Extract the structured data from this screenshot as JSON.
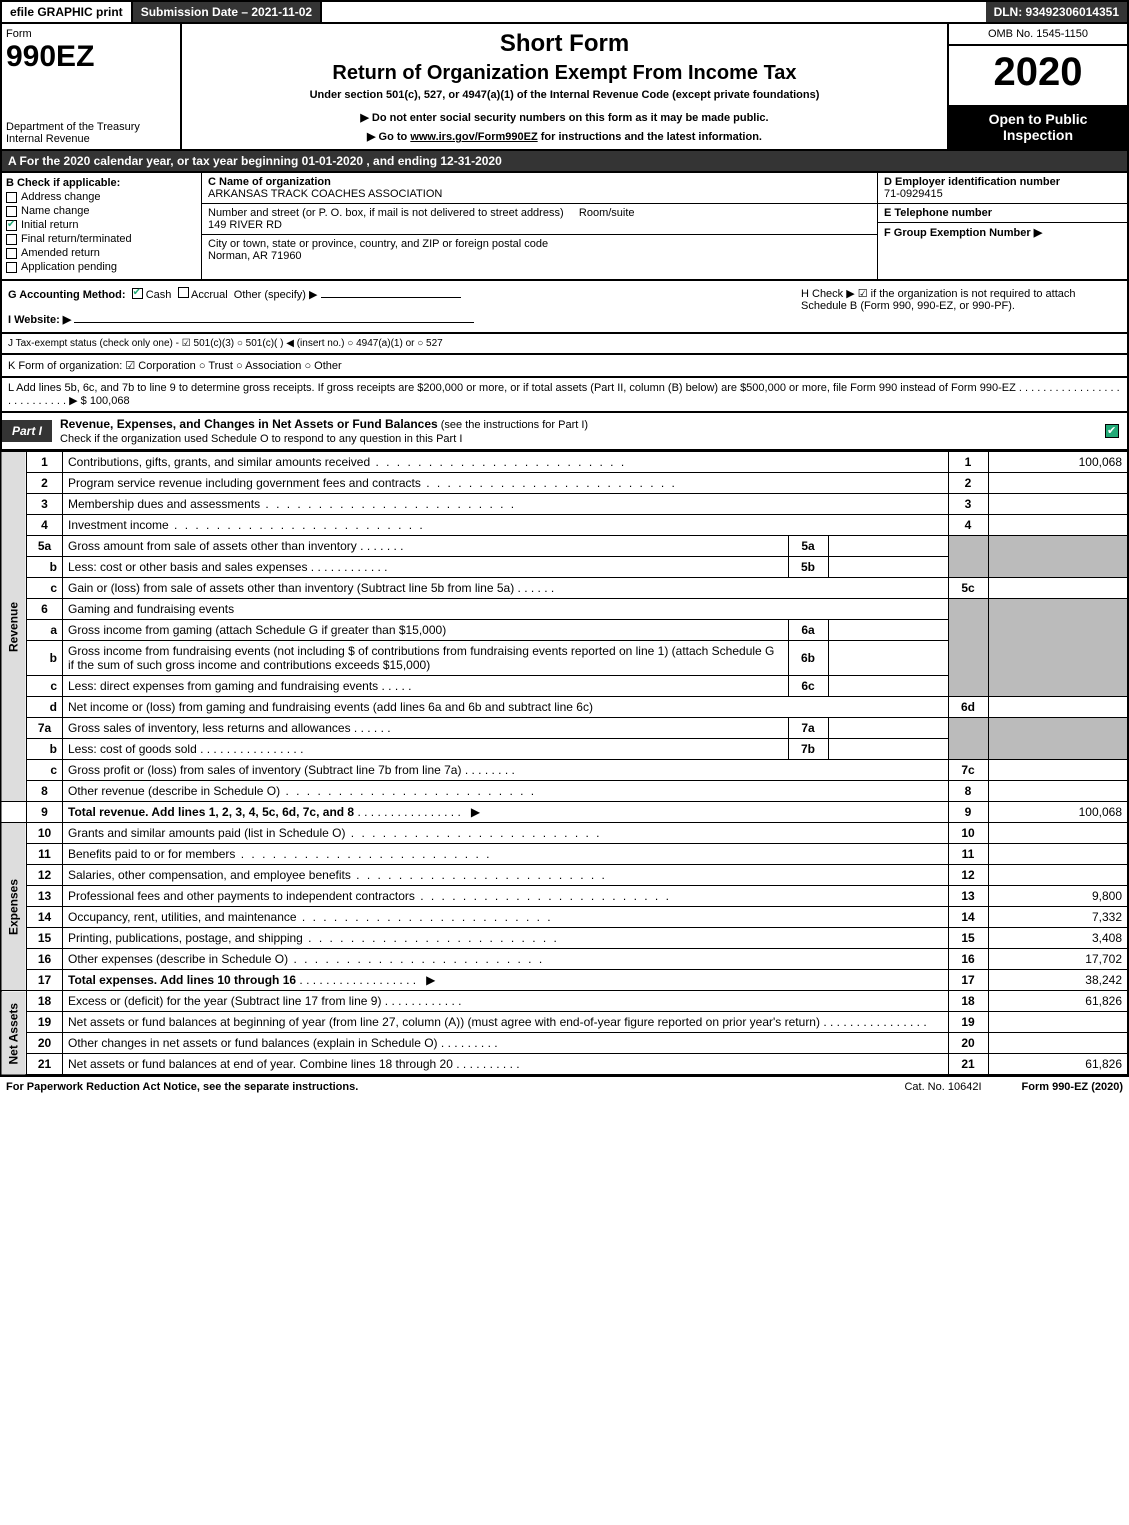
{
  "topbar": {
    "efile": "efile GRAPHIC print",
    "submission": "Submission Date – 2021-11-02",
    "dln": "DLN: 93492306014351"
  },
  "header": {
    "form_label": "Form",
    "form_number": "990EZ",
    "dept": "Department of the Treasury\nInternal Revenue",
    "short_form": "Short Form",
    "return_title": "Return of Organization Exempt From Income Tax",
    "under_section": "Under section 501(c), 527, or 4947(a)(1) of the Internal Revenue Code (except private foundations)",
    "do_not": "▶ Do not enter social security numbers on this form as it may be made public.",
    "goto_pre": "▶ Go to ",
    "goto_link": "www.irs.gov/Form990EZ",
    "goto_post": " for instructions and the latest information.",
    "omb": "OMB No. 1545-1150",
    "year": "2020",
    "open": "Open to Public Inspection"
  },
  "row_a": "A For the 2020 calendar year, or tax year beginning 01-01-2020 , and ending 12-31-2020",
  "col_b": {
    "hdr": "B Check if applicable:",
    "items": [
      {
        "label": "Address change",
        "checked": false
      },
      {
        "label": "Name change",
        "checked": false
      },
      {
        "label": "Initial return",
        "checked": true
      },
      {
        "label": "Final return/terminated",
        "checked": false
      },
      {
        "label": "Amended return",
        "checked": false
      },
      {
        "label": "Application pending",
        "checked": false
      }
    ]
  },
  "col_c": {
    "name_lbl": "C Name of organization",
    "name": "ARKANSAS TRACK COACHES ASSOCIATION",
    "addr_lbl": "Number and street (or P. O. box, if mail is not delivered to street address)",
    "room_lbl": "Room/suite",
    "addr": "149 RIVER RD",
    "city_lbl": "City or town, state or province, country, and ZIP or foreign postal code",
    "city": "Norman, AR  71960"
  },
  "col_d": {
    "ein_lbl": "D Employer identification number",
    "ein": "71-0929415",
    "tel_lbl": "E Telephone number",
    "tel": "",
    "grp_lbl": "F Group Exemption Number  ▶",
    "grp": ""
  },
  "row_g": {
    "g_lbl": "G Accounting Method:",
    "cash": "Cash",
    "accrual": "Accrual",
    "other": "Other (specify) ▶",
    "h_text": "H  Check ▶  ☑  if the organization is not required to attach Schedule B (Form 990, 990-EZ, or 990-PF)."
  },
  "row_i": "I Website: ▶",
  "row_j": "J Tax-exempt status (check only one) - ☑ 501(c)(3)  ○ 501(c)(  ) ◀ (insert no.)  ○ 4947(a)(1) or  ○ 527",
  "row_k": "K Form of organization:  ☑ Corporation  ○ Trust  ○ Association  ○ Other",
  "row_l": "L Add lines 5b, 6c, and 7b to line 9 to determine gross receipts. If gross receipts are $200,000 or more, or if total assets (Part II, column (B) below) are $500,000 or more, file Form 990 instead of Form 990-EZ  .  .  .  .  .  .  .  .  .  .  .  .  .  .  .  .  .  .  .  .  .  .  .  .  .  .  .  ▶ $ 100,068",
  "part1": {
    "tab": "Part I",
    "title": "Revenue, Expenses, and Changes in Net Assets or Fund Balances",
    "sub": " (see the instructions for Part I)",
    "check_line": "Check if the organization used Schedule O to respond to any question in this Part I"
  },
  "sections": {
    "revenue": "Revenue",
    "expenses": "Expenses",
    "netassets": "Net Assets"
  },
  "lines": {
    "l1": {
      "n": "1",
      "d": "Contributions, gifts, grants, and similar amounts received",
      "box": "1",
      "v": "100,068"
    },
    "l2": {
      "n": "2",
      "d": "Program service revenue including government fees and contracts",
      "box": "2",
      "v": ""
    },
    "l3": {
      "n": "3",
      "d": "Membership dues and assessments",
      "box": "3",
      "v": ""
    },
    "l4": {
      "n": "4",
      "d": "Investment income",
      "box": "4",
      "v": ""
    },
    "l5a": {
      "n": "5a",
      "d": "Gross amount from sale of assets other than inventory",
      "mini": "5a"
    },
    "l5b": {
      "n": "b",
      "d": "Less: cost or other basis and sales expenses",
      "mini": "5b"
    },
    "l5c": {
      "n": "c",
      "d": "Gain or (loss) from sale of assets other than inventory (Subtract line 5b from line 5a)",
      "box": "5c",
      "v": ""
    },
    "l6": {
      "n": "6",
      "d": "Gaming and fundraising events"
    },
    "l6a": {
      "n": "a",
      "d": "Gross income from gaming (attach Schedule G if greater than $15,000)",
      "mini": "6a"
    },
    "l6b": {
      "n": "b",
      "d": "Gross income from fundraising events (not including $                      of contributions from fundraising events reported on line 1) (attach Schedule G if the sum of such gross income and contributions exceeds $15,000)",
      "mini": "6b"
    },
    "l6c": {
      "n": "c",
      "d": "Less: direct expenses from gaming and fundraising events",
      "mini": "6c"
    },
    "l6d": {
      "n": "d",
      "d": "Net income or (loss) from gaming and fundraising events (add lines 6a and 6b and subtract line 6c)",
      "box": "6d",
      "v": ""
    },
    "l7a": {
      "n": "7a",
      "d": "Gross sales of inventory, less returns and allowances",
      "mini": "7a"
    },
    "l7b": {
      "n": "b",
      "d": "Less: cost of goods sold",
      "mini": "7b"
    },
    "l7c": {
      "n": "c",
      "d": "Gross profit or (loss) from sales of inventory (Subtract line 7b from line 7a)",
      "box": "7c",
      "v": ""
    },
    "l8": {
      "n": "8",
      "d": "Other revenue (describe in Schedule O)",
      "box": "8",
      "v": ""
    },
    "l9": {
      "n": "9",
      "d": "Total revenue. Add lines 1, 2, 3, 4, 5c, 6d, 7c, and 8",
      "box": "9",
      "v": "100,068",
      "arrow": "▶"
    },
    "l10": {
      "n": "10",
      "d": "Grants and similar amounts paid (list in Schedule O)",
      "box": "10",
      "v": ""
    },
    "l11": {
      "n": "11",
      "d": "Benefits paid to or for members",
      "box": "11",
      "v": ""
    },
    "l12": {
      "n": "12",
      "d": "Salaries, other compensation, and employee benefits",
      "box": "12",
      "v": ""
    },
    "l13": {
      "n": "13",
      "d": "Professional fees and other payments to independent contractors",
      "box": "13",
      "v": "9,800"
    },
    "l14": {
      "n": "14",
      "d": "Occupancy, rent, utilities, and maintenance",
      "box": "14",
      "v": "7,332"
    },
    "l15": {
      "n": "15",
      "d": "Printing, publications, postage, and shipping",
      "box": "15",
      "v": "3,408"
    },
    "l16": {
      "n": "16",
      "d": "Other expenses (describe in Schedule O)",
      "box": "16",
      "v": "17,702"
    },
    "l17": {
      "n": "17",
      "d": "Total expenses. Add lines 10 through 16",
      "box": "17",
      "v": "38,242",
      "arrow": "▶"
    },
    "l18": {
      "n": "18",
      "d": "Excess or (deficit) for the year (Subtract line 17 from line 9)",
      "box": "18",
      "v": "61,826"
    },
    "l19": {
      "n": "19",
      "d": "Net assets or fund balances at beginning of year (from line 27, column (A)) (must agree with end-of-year figure reported on prior year's return)",
      "box": "19",
      "v": ""
    },
    "l20": {
      "n": "20",
      "d": "Other changes in net assets or fund balances (explain in Schedule O)",
      "box": "20",
      "v": ""
    },
    "l21": {
      "n": "21",
      "d": "Net assets or fund balances at end of year. Combine lines 18 through 20",
      "box": "21",
      "v": "61,826"
    }
  },
  "footer": {
    "left": "For Paperwork Reduction Act Notice, see the separate instructions.",
    "mid": "Cat. No. 10642I",
    "right": "Form 990-EZ (2020)"
  }
}
